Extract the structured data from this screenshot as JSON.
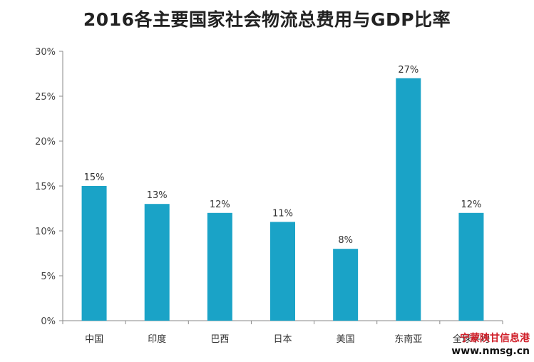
{
  "chart_data": {
    "type": "bar",
    "title": "2016各主要国家社会物流总费用与GDP比率",
    "categories": [
      "中国",
      "印度",
      "巴西",
      "日本",
      "美国",
      "东南亚",
      "全球平均"
    ],
    "values": [
      15,
      13,
      12,
      11,
      8,
      27,
      12
    ],
    "value_labels": [
      "15%",
      "13%",
      "12%",
      "11%",
      "8%",
      "27%",
      "12%"
    ],
    "y_ticks": [
      "0%",
      "5%",
      "10%",
      "15%",
      "20%",
      "25%",
      "30%"
    ],
    "ylim": [
      0,
      30
    ],
    "xlabel": "",
    "ylabel": "",
    "grid": false,
    "legend": "none",
    "bar_color": "#1aa3c7"
  },
  "watermark": {
    "name": "宁蒙陕甘信息港",
    "url": "www.nmsg.cn"
  }
}
